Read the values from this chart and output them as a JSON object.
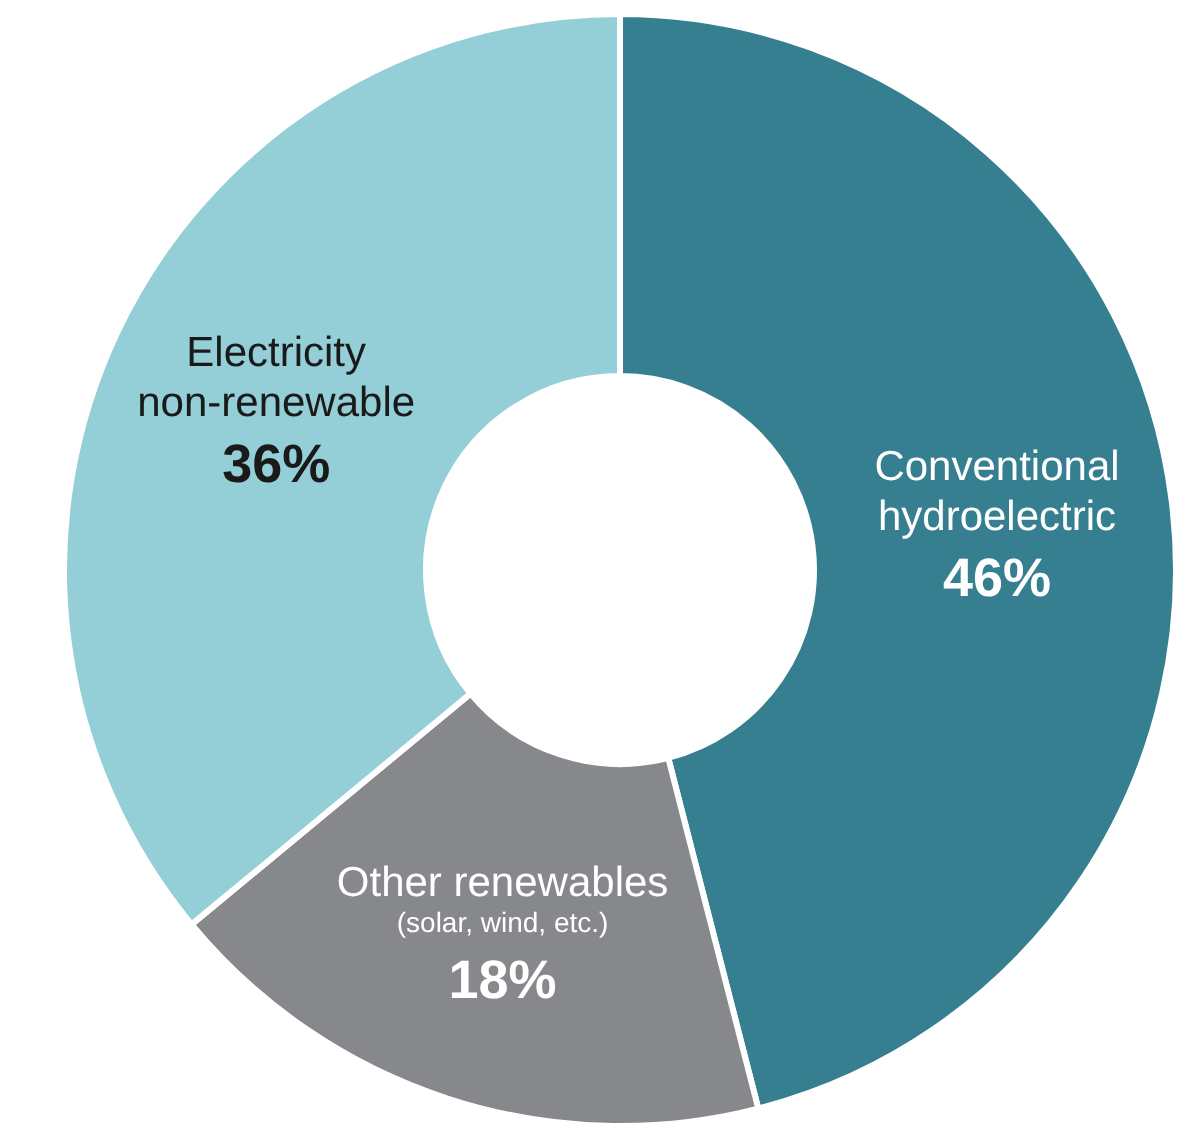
{
  "chart_data": {
    "type": "donut",
    "categories": [
      "Conventional\nhydroelectric",
      "Other renewables\n(solar, wind, etc.)",
      "Electricity\nnon-renewable"
    ],
    "values": [
      46,
      18,
      36
    ],
    "colors": [
      "#357f91",
      "#86888c",
      "#94ced6"
    ],
    "value_labels": [
      "46%",
      "18%",
      "36%"
    ]
  }
}
